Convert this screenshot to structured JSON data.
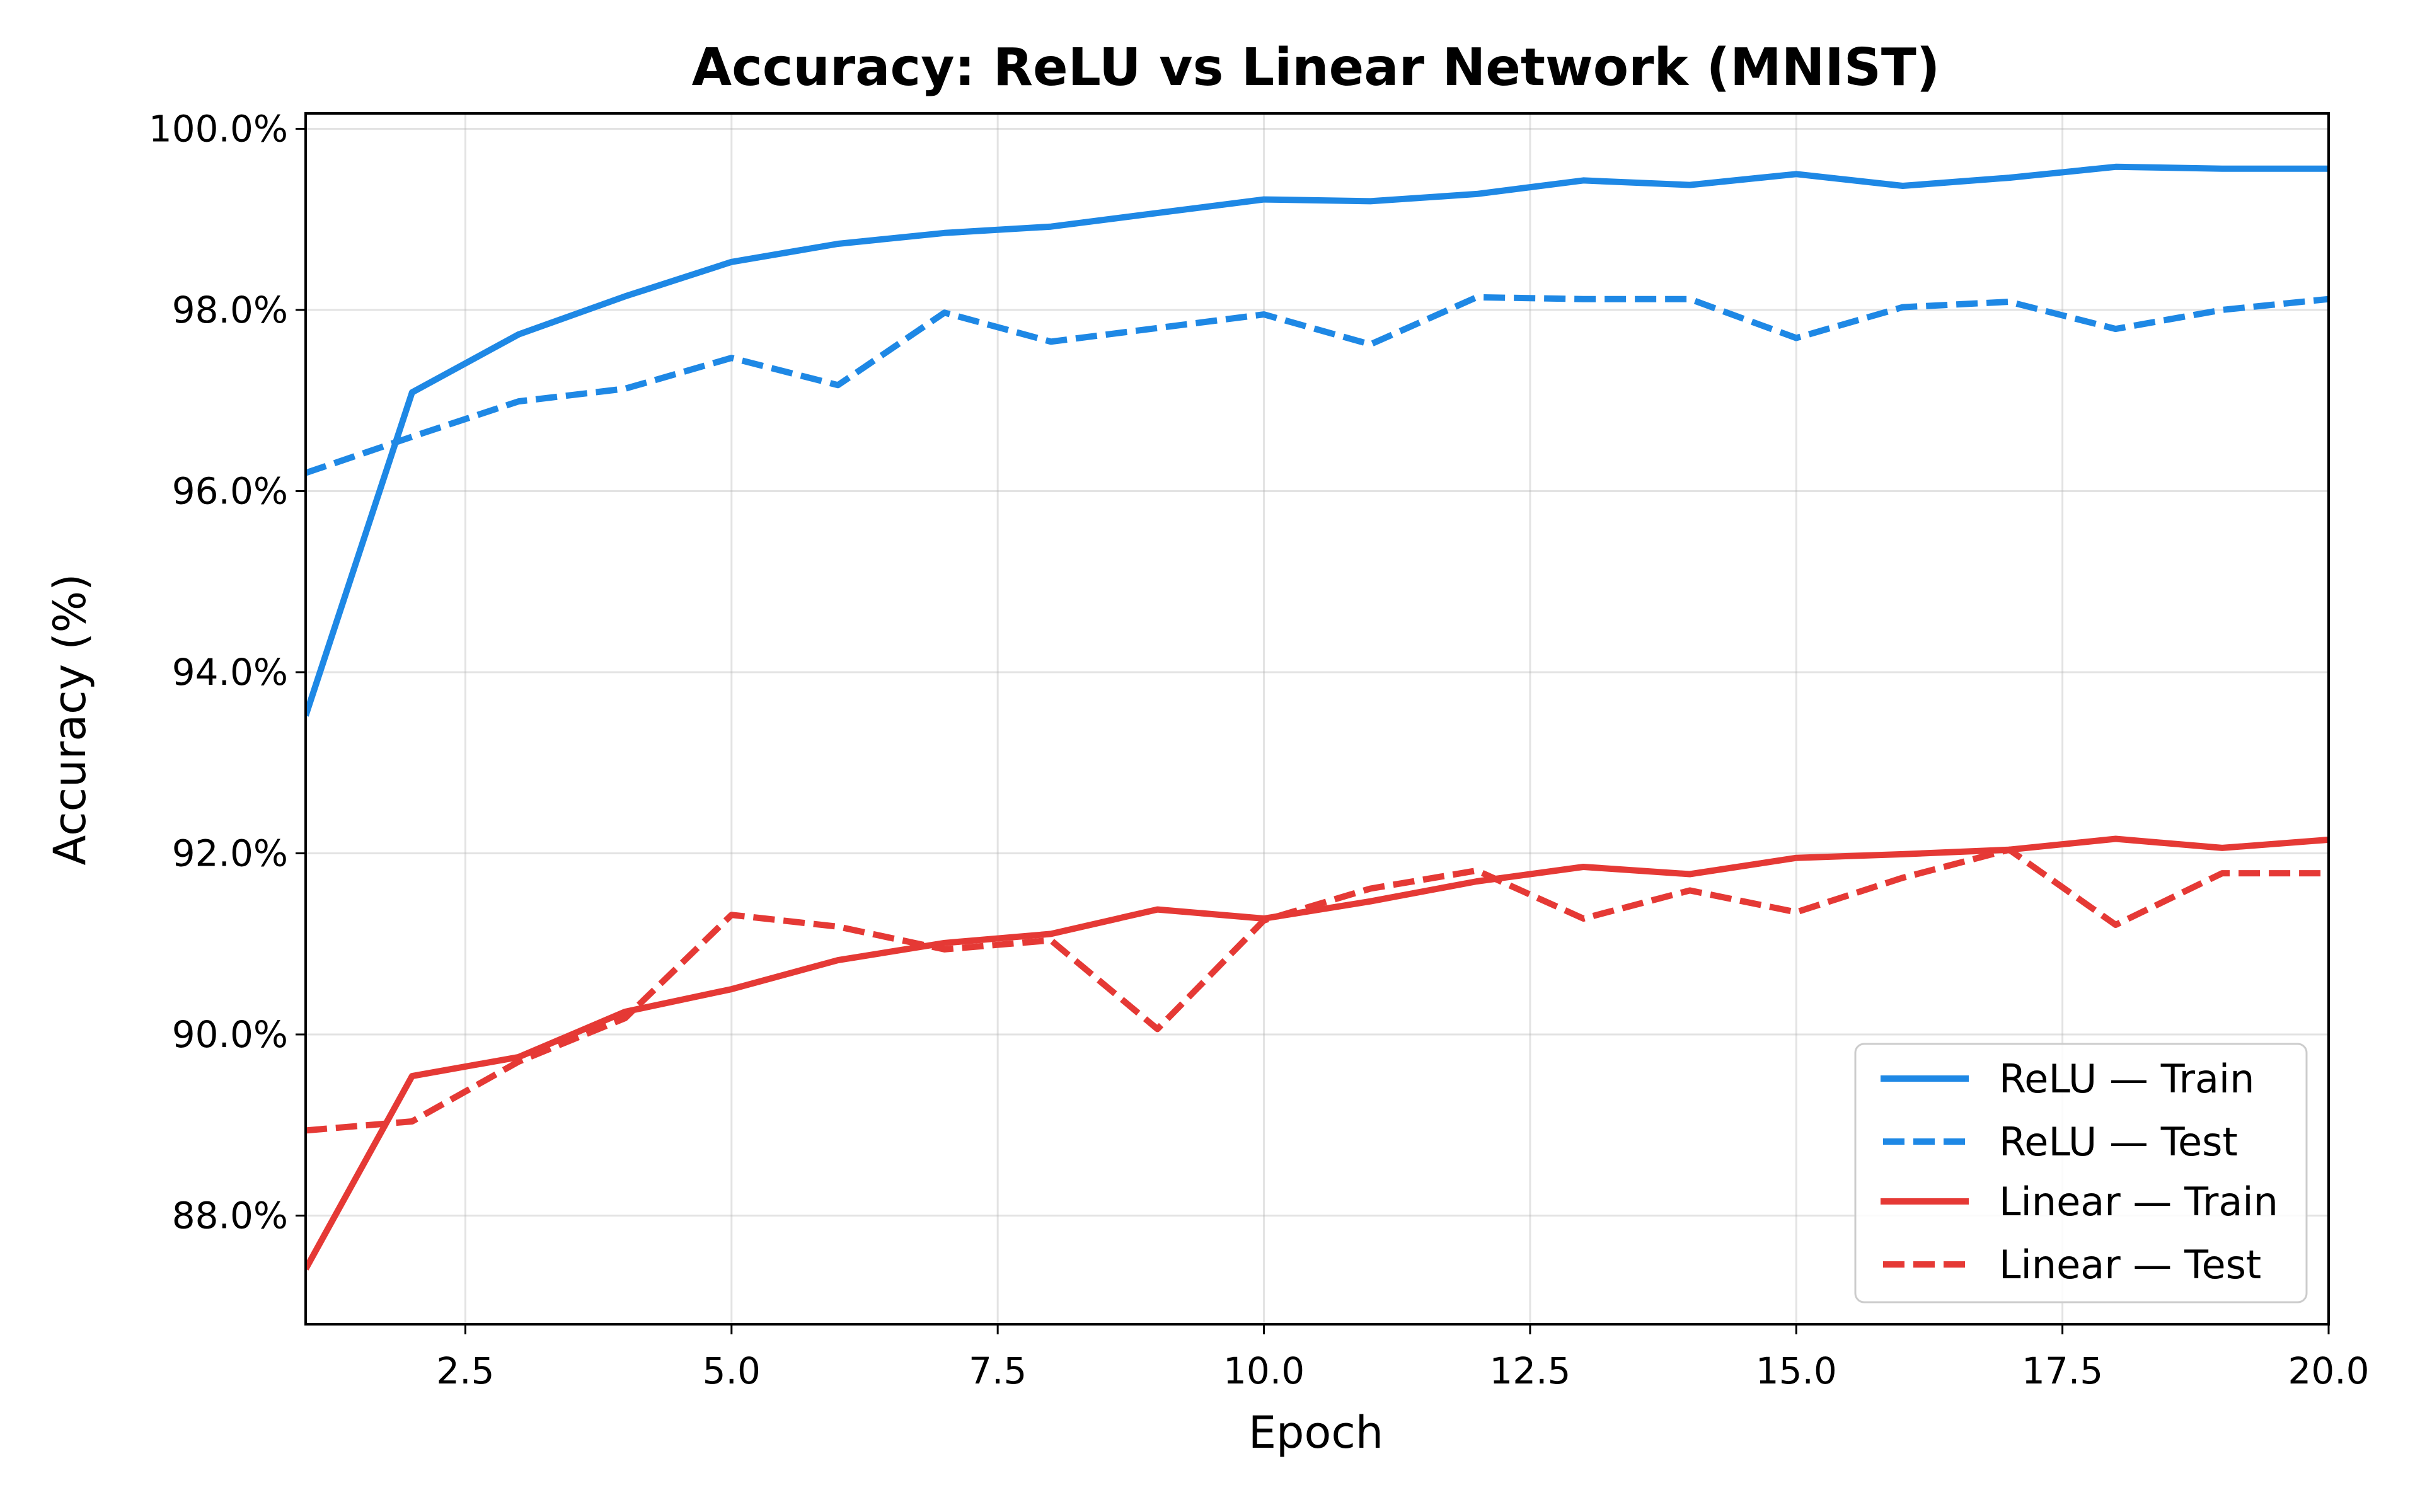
{
  "chart_data": {
    "type": "line",
    "title": "Accuracy: ReLU vs Linear Network (MNIST)",
    "xlabel": "Epoch",
    "ylabel": "Accuracy (%)",
    "xlim": [
      1,
      20
    ],
    "ylim": [
      86.8,
      100.17
    ],
    "grid": true,
    "legend_position": "lower right",
    "xticks": [
      2.5,
      5.0,
      7.5,
      10.0,
      12.5,
      15.0,
      17.5,
      20.0
    ],
    "xtick_labels": [
      "2.5",
      "5.0",
      "7.5",
      "10.0",
      "12.5",
      "15.0",
      "17.5",
      "20.0"
    ],
    "yticks": [
      88,
      90,
      92,
      94,
      96,
      98,
      100
    ],
    "ytick_labels": [
      "88.0%",
      "90.0%",
      "92.0%",
      "94.0%",
      "96.0%",
      "98.0%",
      "100.0%"
    ],
    "x": [
      1,
      2,
      3,
      4,
      5,
      6,
      7,
      8,
      9,
      10,
      11,
      12,
      13,
      14,
      15,
      16,
      17,
      18,
      19,
      20
    ],
    "series": [
      {
        "name": "ReLU — Train",
        "color": "#1E88E5",
        "dash": "solid",
        "values": [
          93.52,
          97.09,
          97.73,
          98.15,
          98.53,
          98.73,
          98.85,
          98.92,
          99.07,
          99.22,
          99.2,
          99.28,
          99.43,
          99.38,
          99.5,
          99.37,
          99.46,
          99.58,
          99.56,
          99.56
        ]
      },
      {
        "name": "ReLU — Test",
        "color": "#1E88E5",
        "dash": "dashed",
        "values": [
          96.2,
          96.6,
          96.99,
          97.13,
          97.47,
          97.17,
          97.97,
          97.65,
          97.8,
          97.95,
          97.62,
          98.14,
          98.12,
          98.12,
          97.69,
          98.03,
          98.09,
          97.79,
          98.0,
          98.12
        ]
      },
      {
        "name": "Linear — Train",
        "color": "#E53935",
        "dash": "solid",
        "values": [
          87.41,
          89.54,
          89.75,
          90.25,
          90.5,
          90.82,
          91.01,
          91.11,
          91.38,
          91.28,
          91.47,
          91.69,
          91.85,
          91.77,
          91.95,
          91.99,
          92.04,
          92.16,
          92.06,
          92.15
        ]
      },
      {
        "name": "Linear — Test",
        "color": "#E53935",
        "dash": "dashed",
        "values": [
          88.94,
          89.04,
          89.7,
          90.18,
          91.32,
          91.19,
          90.94,
          91.04,
          90.06,
          91.26,
          91.61,
          91.81,
          91.28,
          91.59,
          91.35,
          91.73,
          92.04,
          91.21,
          91.78,
          91.78
        ]
      }
    ]
  },
  "legend": {
    "items": [
      {
        "label": "ReLU — Train"
      },
      {
        "label": "ReLU — Test"
      },
      {
        "label": "Linear — Train"
      },
      {
        "label": "Linear — Test"
      }
    ]
  }
}
